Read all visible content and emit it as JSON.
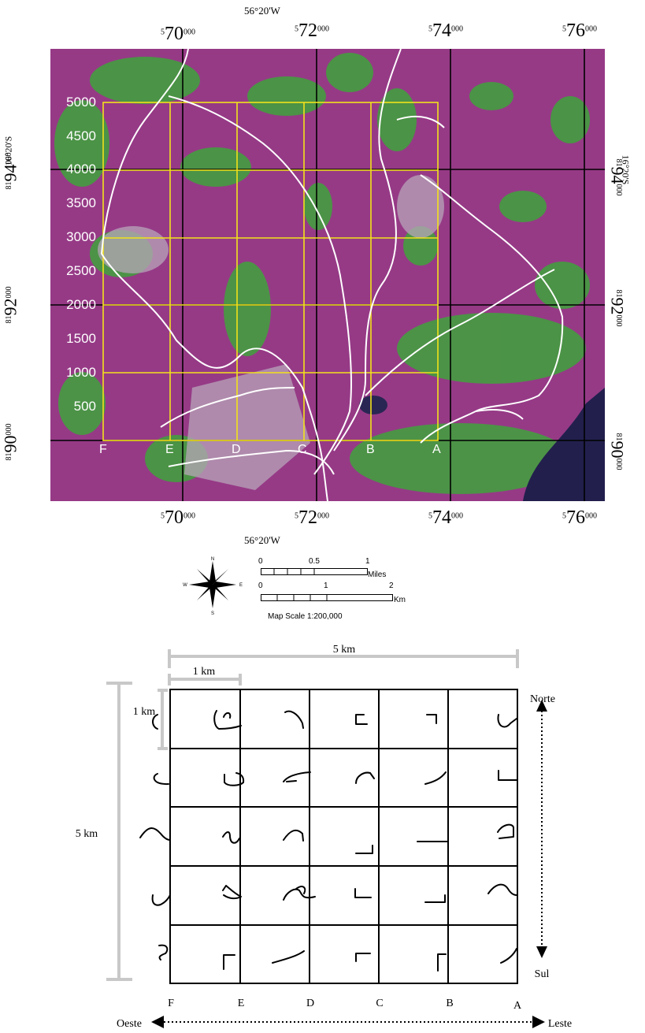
{
  "map": {
    "top_coords": [
      "5",
      "70",
      "000",
      "5",
      "72",
      "000",
      "5",
      "74",
      "000",
      "5",
      "76",
      "000"
    ],
    "top_center": "56°20'W",
    "bottom_center": "56°20'W",
    "lat_label": "16°20'S",
    "left_coords": [
      "81",
      "94",
      "000",
      "81",
      "92",
      "000",
      "81",
      "90",
      "000"
    ],
    "y_labels": [
      "5000",
      "4500",
      "4000",
      "3500",
      "3000",
      "2500",
      "2000",
      "1500",
      "1000",
      "500"
    ],
    "col_labels": [
      "F",
      "E",
      "D",
      "C",
      "B",
      "A"
    ],
    "colors": {
      "yellow": "#f2e21a",
      "magenta": "#9b3a8a",
      "green": "#3fa63f",
      "water": "#22204f"
    }
  },
  "compass": {
    "n": "N",
    "s": "S",
    "e": "E",
    "w": "W"
  },
  "scale": {
    "miles_ticks": [
      "0",
      "0.5",
      "1"
    ],
    "miles_unit": "Miles",
    "km_ticks": [
      "0",
      "1",
      "2"
    ],
    "km_unit": "Km",
    "caption": "Map Scale 1:200,000"
  },
  "diagram": {
    "top_dim": "5 km",
    "cell_dim_h": "1 km",
    "cell_dim_v": "1 km",
    "left_dim": "5 km",
    "north": "Norte",
    "south": "Sul",
    "west": "Oeste",
    "east": "Leste",
    "cols": [
      "F",
      "E",
      "D",
      "C",
      "B",
      "A"
    ]
  }
}
